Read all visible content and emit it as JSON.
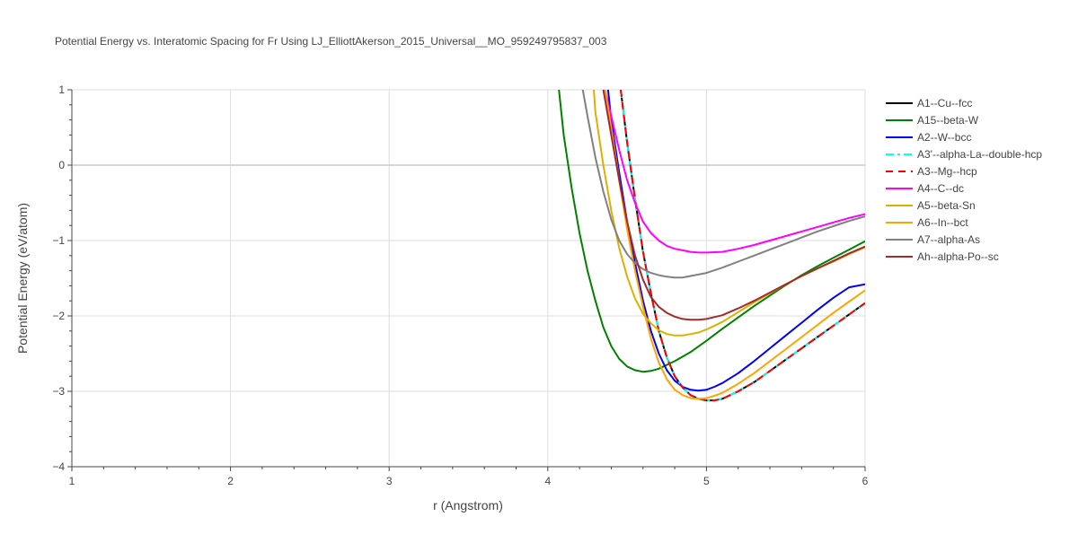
{
  "chart_data": {
    "type": "line",
    "title": "Potential Energy vs. Interatomic Spacing for Fr Using LJ_ElliottAkerson_2015_Universal__MO_959249795837_003",
    "xlabel": "r (Angstrom)",
    "ylabel": "Potential Energy (eV/atom)",
    "xlim": [
      1,
      6
    ],
    "ylim": [
      -4,
      1
    ],
    "xticks": [
      1,
      2,
      3,
      4,
      5,
      6
    ],
    "yticks": [
      -4,
      -3,
      -2,
      -1,
      0,
      1
    ],
    "ytick_labels": [
      "−4",
      "−3",
      "−2",
      "−1",
      "0",
      "1"
    ],
    "grid": true,
    "zero_line": true,
    "legend_position": "right",
    "series": [
      {
        "name": "A1--Cu--fcc",
        "color": "#000000",
        "dash": "solid",
        "x": [
          4.46,
          4.5,
          4.55,
          4.6,
          4.65,
          4.7,
          4.75,
          4.8,
          4.85,
          4.9,
          4.95,
          5.0,
          5.05,
          5.1,
          5.2,
          5.3,
          5.4,
          5.5,
          5.6,
          5.7,
          5.8,
          5.9,
          6.0
        ],
        "y": [
          1.0,
          0.3,
          -0.45,
          -1.15,
          -1.7,
          -2.2,
          -2.55,
          -2.8,
          -2.95,
          -3.05,
          -3.1,
          -3.12,
          -3.12,
          -3.1,
          -3.0,
          -2.88,
          -2.73,
          -2.58,
          -2.43,
          -2.28,
          -2.13,
          -1.98,
          -1.83
        ]
      },
      {
        "name": "A15--beta-W",
        "color": "#008000",
        "dash": "solid",
        "x": [
          4.07,
          4.1,
          4.15,
          4.2,
          4.25,
          4.3,
          4.35,
          4.4,
          4.45,
          4.5,
          4.55,
          4.6,
          4.65,
          4.7,
          4.8,
          4.9,
          5.0,
          5.1,
          5.2,
          5.3,
          5.4,
          5.5,
          5.6,
          5.7,
          5.8,
          5.9,
          6.0
        ],
        "y": [
          1.0,
          0.4,
          -0.3,
          -0.9,
          -1.4,
          -1.8,
          -2.15,
          -2.4,
          -2.57,
          -2.67,
          -2.72,
          -2.74,
          -2.73,
          -2.7,
          -2.6,
          -2.48,
          -2.33,
          -2.17,
          -2.02,
          -1.87,
          -1.73,
          -1.59,
          -1.46,
          -1.34,
          -1.23,
          -1.12,
          -1.01
        ]
      },
      {
        "name": "A2--W--bcc",
        "color": "#0000ff",
        "dash": "solid",
        "x": [
          4.38,
          4.4,
          4.45,
          4.5,
          4.55,
          4.6,
          4.65,
          4.7,
          4.75,
          4.8,
          4.85,
          4.9,
          4.95,
          5.0,
          5.05,
          5.1,
          5.2,
          5.3,
          5.4,
          5.5,
          5.6,
          5.7,
          5.8,
          5.9,
          6.0
        ],
        "y": [
          1.0,
          0.6,
          -0.1,
          -0.75,
          -1.3,
          -1.8,
          -2.2,
          -2.5,
          -2.72,
          -2.86,
          -2.94,
          -2.98,
          -2.99,
          -2.98,
          -2.94,
          -2.89,
          -2.76,
          -2.6,
          -2.43,
          -2.26,
          -2.09,
          -1.92,
          -1.76,
          -1.62,
          -1.58
        ]
      },
      {
        "name": "A3'--alpha-La--double-hcp",
        "color": "#00ffff",
        "dash": "dashdot",
        "x": [
          4.46,
          4.5,
          4.55,
          4.6,
          4.65,
          4.7,
          4.75,
          4.8,
          4.85,
          4.9,
          4.95,
          5.0,
          5.05,
          5.1,
          5.2,
          5.3,
          5.4,
          5.5,
          5.6,
          5.7,
          5.8,
          5.9,
          6.0
        ],
        "y": [
          1.0,
          0.3,
          -0.45,
          -1.15,
          -1.7,
          -2.2,
          -2.55,
          -2.8,
          -2.95,
          -3.05,
          -3.1,
          -3.12,
          -3.12,
          -3.1,
          -3.0,
          -2.88,
          -2.73,
          -2.58,
          -2.43,
          -2.28,
          -2.13,
          -1.98,
          -1.83
        ]
      },
      {
        "name": "A3--Mg--hcp",
        "color": "#ff0000",
        "dash": "dash",
        "x": [
          4.46,
          4.5,
          4.55,
          4.6,
          4.65,
          4.7,
          4.75,
          4.8,
          4.85,
          4.9,
          4.95,
          5.0,
          5.05,
          5.1,
          5.2,
          5.3,
          5.4,
          5.5,
          5.6,
          5.7,
          5.8,
          5.9,
          6.0
        ],
        "y": [
          1.0,
          0.3,
          -0.45,
          -1.15,
          -1.7,
          -2.2,
          -2.55,
          -2.8,
          -2.95,
          -3.05,
          -3.1,
          -3.12,
          -3.12,
          -3.1,
          -3.0,
          -2.88,
          -2.73,
          -2.58,
          -2.43,
          -2.28,
          -2.13,
          -1.98,
          -1.83
        ]
      },
      {
        "name": "A4--C--dc",
        "color": "#ff00ff",
        "dash": "solid",
        "x": [
          4.36,
          4.4,
          4.45,
          4.5,
          4.55,
          4.6,
          4.65,
          4.7,
          4.75,
          4.8,
          4.85,
          4.9,
          4.95,
          5.0,
          5.1,
          5.2,
          5.3,
          5.4,
          5.5,
          5.6,
          5.7,
          5.8,
          5.9,
          6.0
        ],
        "y": [
          1.0,
          0.65,
          0.2,
          -0.2,
          -0.5,
          -0.75,
          -0.9,
          -1.0,
          -1.07,
          -1.11,
          -1.13,
          -1.15,
          -1.16,
          -1.16,
          -1.15,
          -1.11,
          -1.06,
          -1.0,
          -0.94,
          -0.88,
          -0.82,
          -0.76,
          -0.7,
          -0.65
        ]
      },
      {
        "name": "A5--beta-Sn",
        "color": "#ddb000",
        "dash": "solid",
        "x": [
          4.29,
          4.3,
          4.35,
          4.4,
          4.45,
          4.5,
          4.55,
          4.6,
          4.65,
          4.7,
          4.75,
          4.8,
          4.85,
          4.9,
          4.95,
          5.0,
          5.1,
          5.2,
          5.3,
          5.4,
          5.5,
          5.6,
          5.7,
          5.8,
          5.9,
          6.0
        ],
        "y": [
          1.0,
          0.7,
          0.0,
          -0.6,
          -1.1,
          -1.48,
          -1.77,
          -1.97,
          -2.1,
          -2.19,
          -2.24,
          -2.26,
          -2.26,
          -2.24,
          -2.22,
          -2.18,
          -2.08,
          -1.95,
          -1.82,
          -1.7,
          -1.58,
          -1.47,
          -1.37,
          -1.28,
          -1.18,
          -1.09
        ]
      },
      {
        "name": "A6--In--bct",
        "color": "#ffa500",
        "dash": "solid",
        "x": [
          4.36,
          4.4,
          4.45,
          4.5,
          4.55,
          4.6,
          4.65,
          4.7,
          4.75,
          4.8,
          4.85,
          4.9,
          4.95,
          5.0,
          5.05,
          5.1,
          5.2,
          5.3,
          5.4,
          5.5,
          5.6,
          5.7,
          5.8,
          5.9,
          6.0
        ],
        "y": [
          1.0,
          0.5,
          -0.2,
          -0.85,
          -1.4,
          -1.88,
          -2.3,
          -2.62,
          -2.84,
          -2.98,
          -3.05,
          -3.09,
          -3.1,
          -3.09,
          -3.06,
          -3.02,
          -2.9,
          -2.76,
          -2.6,
          -2.44,
          -2.28,
          -2.12,
          -1.96,
          -1.81,
          -1.66
        ]
      },
      {
        "name": "A7--alpha-As",
        "color": "#808080",
        "dash": "solid",
        "x": [
          4.22,
          4.25,
          4.3,
          4.35,
          4.4,
          4.45,
          4.5,
          4.55,
          4.6,
          4.65,
          4.7,
          4.75,
          4.8,
          4.85,
          4.9,
          4.95,
          5.0,
          5.1,
          5.2,
          5.3,
          5.4,
          5.5,
          5.6,
          5.7,
          5.8,
          5.9,
          6.0
        ],
        "y": [
          1.0,
          0.65,
          0.1,
          -0.35,
          -0.72,
          -1.0,
          -1.18,
          -1.3,
          -1.38,
          -1.43,
          -1.46,
          -1.48,
          -1.49,
          -1.49,
          -1.47,
          -1.45,
          -1.43,
          -1.36,
          -1.28,
          -1.2,
          -1.12,
          -1.04,
          -0.96,
          -0.88,
          -0.81,
          -0.74,
          -0.68
        ]
      },
      {
        "name": "Ah--alpha-Po--sc",
        "color": "#a52a2a",
        "dash": "solid",
        "x": [
          4.35,
          4.4,
          4.45,
          4.5,
          4.55,
          4.6,
          4.65,
          4.7,
          4.75,
          4.8,
          4.85,
          4.9,
          4.95,
          5.0,
          5.1,
          5.2,
          5.3,
          5.4,
          5.5,
          5.6,
          5.7,
          5.8,
          5.9,
          6.0
        ],
        "y": [
          1.0,
          0.4,
          -0.2,
          -0.75,
          -1.2,
          -1.52,
          -1.75,
          -1.88,
          -1.96,
          -2.01,
          -2.04,
          -2.05,
          -2.05,
          -2.04,
          -1.99,
          -1.9,
          -1.8,
          -1.69,
          -1.58,
          -1.47,
          -1.37,
          -1.27,
          -1.17,
          -1.08
        ]
      }
    ]
  }
}
